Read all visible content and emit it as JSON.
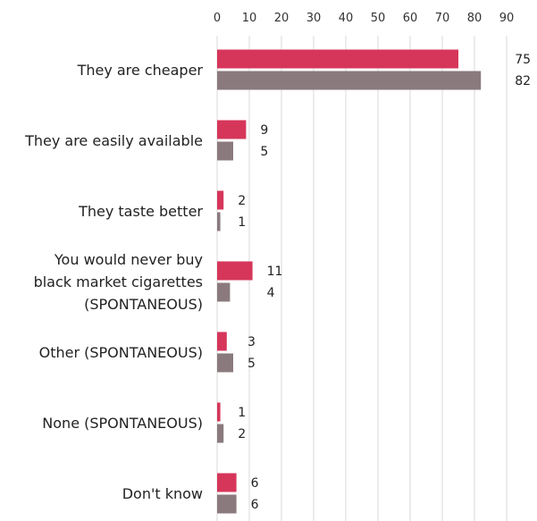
{
  "chart_data": {
    "type": "bar",
    "orientation": "horizontal",
    "categories": [
      [
        "They are cheaper"
      ],
      [
        "They are easily available"
      ],
      [
        "They taste better"
      ],
      [
        "You would never buy",
        "black market cigarettes",
        "(SPONTANEOUS)"
      ],
      [
        "Other (SPONTANEOUS)"
      ],
      [
        "None (SPONTANEOUS)"
      ],
      [
        "Don't know"
      ]
    ],
    "series": [
      {
        "values": [
          75,
          9,
          2,
          11,
          3,
          1,
          6
        ],
        "color": "#d6365a"
      },
      {
        "values": [
          82,
          5,
          1,
          4,
          5,
          2,
          6
        ],
        "color": "#8a7a7d"
      }
    ],
    "xticks": [
      0,
      10,
      20,
      30,
      40,
      50,
      60,
      70,
      80,
      90
    ],
    "xlim": [
      0,
      90
    ],
    "grid": true,
    "axis_position": "top",
    "title": "",
    "xlabel": "",
    "ylabel": ""
  }
}
